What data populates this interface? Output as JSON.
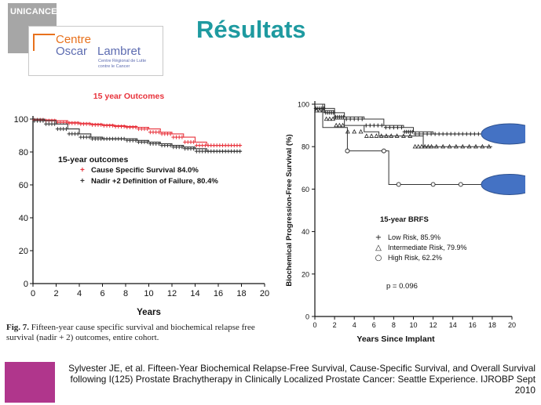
{
  "header": {
    "brand_logo_text": "UNICANCER",
    "institution_line1": "Centre",
    "institution_line2a": "Oscar",
    "institution_line2b": "Lambret",
    "institution_sub1": "Centre Régional de Lutte",
    "institution_sub2": "contre le Cancer",
    "title": "Résultats"
  },
  "caption": {
    "figure_label": "Fig. 7.",
    "text": "Fifteen-year cause specific survival and biochemical relapse free survival (nadir + 2) outcomes, entire cohort."
  },
  "reference": "Sylvester JE, et al. Fifteen-Year Biochemical Relapse-Free Survival, Cause-Specific Survival, and Overall Survival following I(125) Prostate Brachytherapy in Clinically Localized Prostate Cancer: Seattle Experience. IJROBP Sept 2010",
  "colors": {
    "title": "#1e9aa0",
    "accent_red": "#e8333c",
    "ellipse": "#4472c4",
    "footer": "#b0368c"
  },
  "chart_data": [
    {
      "type": "line",
      "title": "15 year Outcomes",
      "xlabel": "Years",
      "ylabel": "",
      "xlim": [
        0,
        20
      ],
      "ylim": [
        0,
        100
      ],
      "xticks": [
        "0",
        "2",
        "4",
        "6",
        "8",
        "10",
        "12",
        "14",
        "16",
        "18",
        "20"
      ],
      "yticks": [
        "0",
        "20",
        "40",
        "60",
        "80",
        "100"
      ],
      "legend_title": "15-year outcomes",
      "legend_placement": "center",
      "series": [
        {
          "name": "Cause Specific Survival 84.0%",
          "marker": "+",
          "color": "#e8333c",
          "x": [
            0,
            1,
            2,
            3,
            4,
            5,
            6,
            7,
            8,
            9,
            10,
            11,
            12,
            13,
            14,
            15,
            16,
            17,
            18
          ],
          "y": [
            100,
            99.5,
            99,
            98,
            97.5,
            97,
            96.5,
            96,
            95.5,
            95,
            94,
            92,
            91,
            89,
            86,
            84,
            84,
            84,
            84
          ]
        },
        {
          "name": "Nadir +2 Definition of Failure, 80.4%",
          "marker": "+",
          "color": "#333333",
          "x": [
            0,
            1,
            2,
            3,
            4,
            5,
            6,
            7,
            8,
            9,
            10,
            11,
            12,
            13,
            14,
            15,
            16,
            17,
            18
          ],
          "y": [
            100,
            99,
            97,
            94,
            91,
            89,
            88,
            88,
            88,
            87,
            86,
            85,
            84,
            83,
            82,
            80.4,
            80.4,
            80.4,
            80.4
          ]
        }
      ]
    },
    {
      "type": "line",
      "title": "",
      "xlabel": "Years Since Implant",
      "ylabel": "Biochemical Progression-Free Survival (%)",
      "xlim": [
        0,
        20
      ],
      "ylim": [
        0,
        100
      ],
      "xticks": [
        "0",
        "2",
        "4",
        "6",
        "8",
        "10",
        "12",
        "14",
        "16",
        "18",
        "20"
      ],
      "yticks": [
        "0",
        "20",
        "40",
        "60",
        "80",
        "100"
      ],
      "legend_title": "15-year BRFS",
      "legend_placement": "bottom-center",
      "annotation": "p = 0.096",
      "series": [
        {
          "name": "Low Risk, 85.9%",
          "marker": "+",
          "x": [
            0,
            1,
            2,
            3,
            5,
            7,
            9,
            10,
            12,
            14,
            16,
            18
          ],
          "y": [
            100,
            98,
            96,
            94,
            93,
            90,
            89,
            87,
            86,
            86,
            86,
            86
          ]
        },
        {
          "name": "Intermediate Risk, 79.9%",
          "marker": "triangle",
          "x": [
            0,
            1,
            2,
            3,
            5,
            6.5,
            8,
            10,
            11,
            12,
            14,
            16,
            18
          ],
          "y": [
            100,
            97,
            93,
            90,
            87,
            85,
            85,
            85,
            80,
            80,
            80,
            80,
            80
          ]
        },
        {
          "name": "High Risk, 62.2%",
          "marker": "circle",
          "x": [
            0,
            0.8,
            2.5,
            3.3,
            5,
            7,
            7.5,
            8.5,
            10,
            12,
            14,
            16,
            18
          ],
          "y": [
            100,
            89,
            89,
            78,
            78,
            78,
            62.2,
            62.2,
            62.2,
            62.2,
            62.2,
            62.2,
            62.2
          ]
        }
      ]
    }
  ]
}
